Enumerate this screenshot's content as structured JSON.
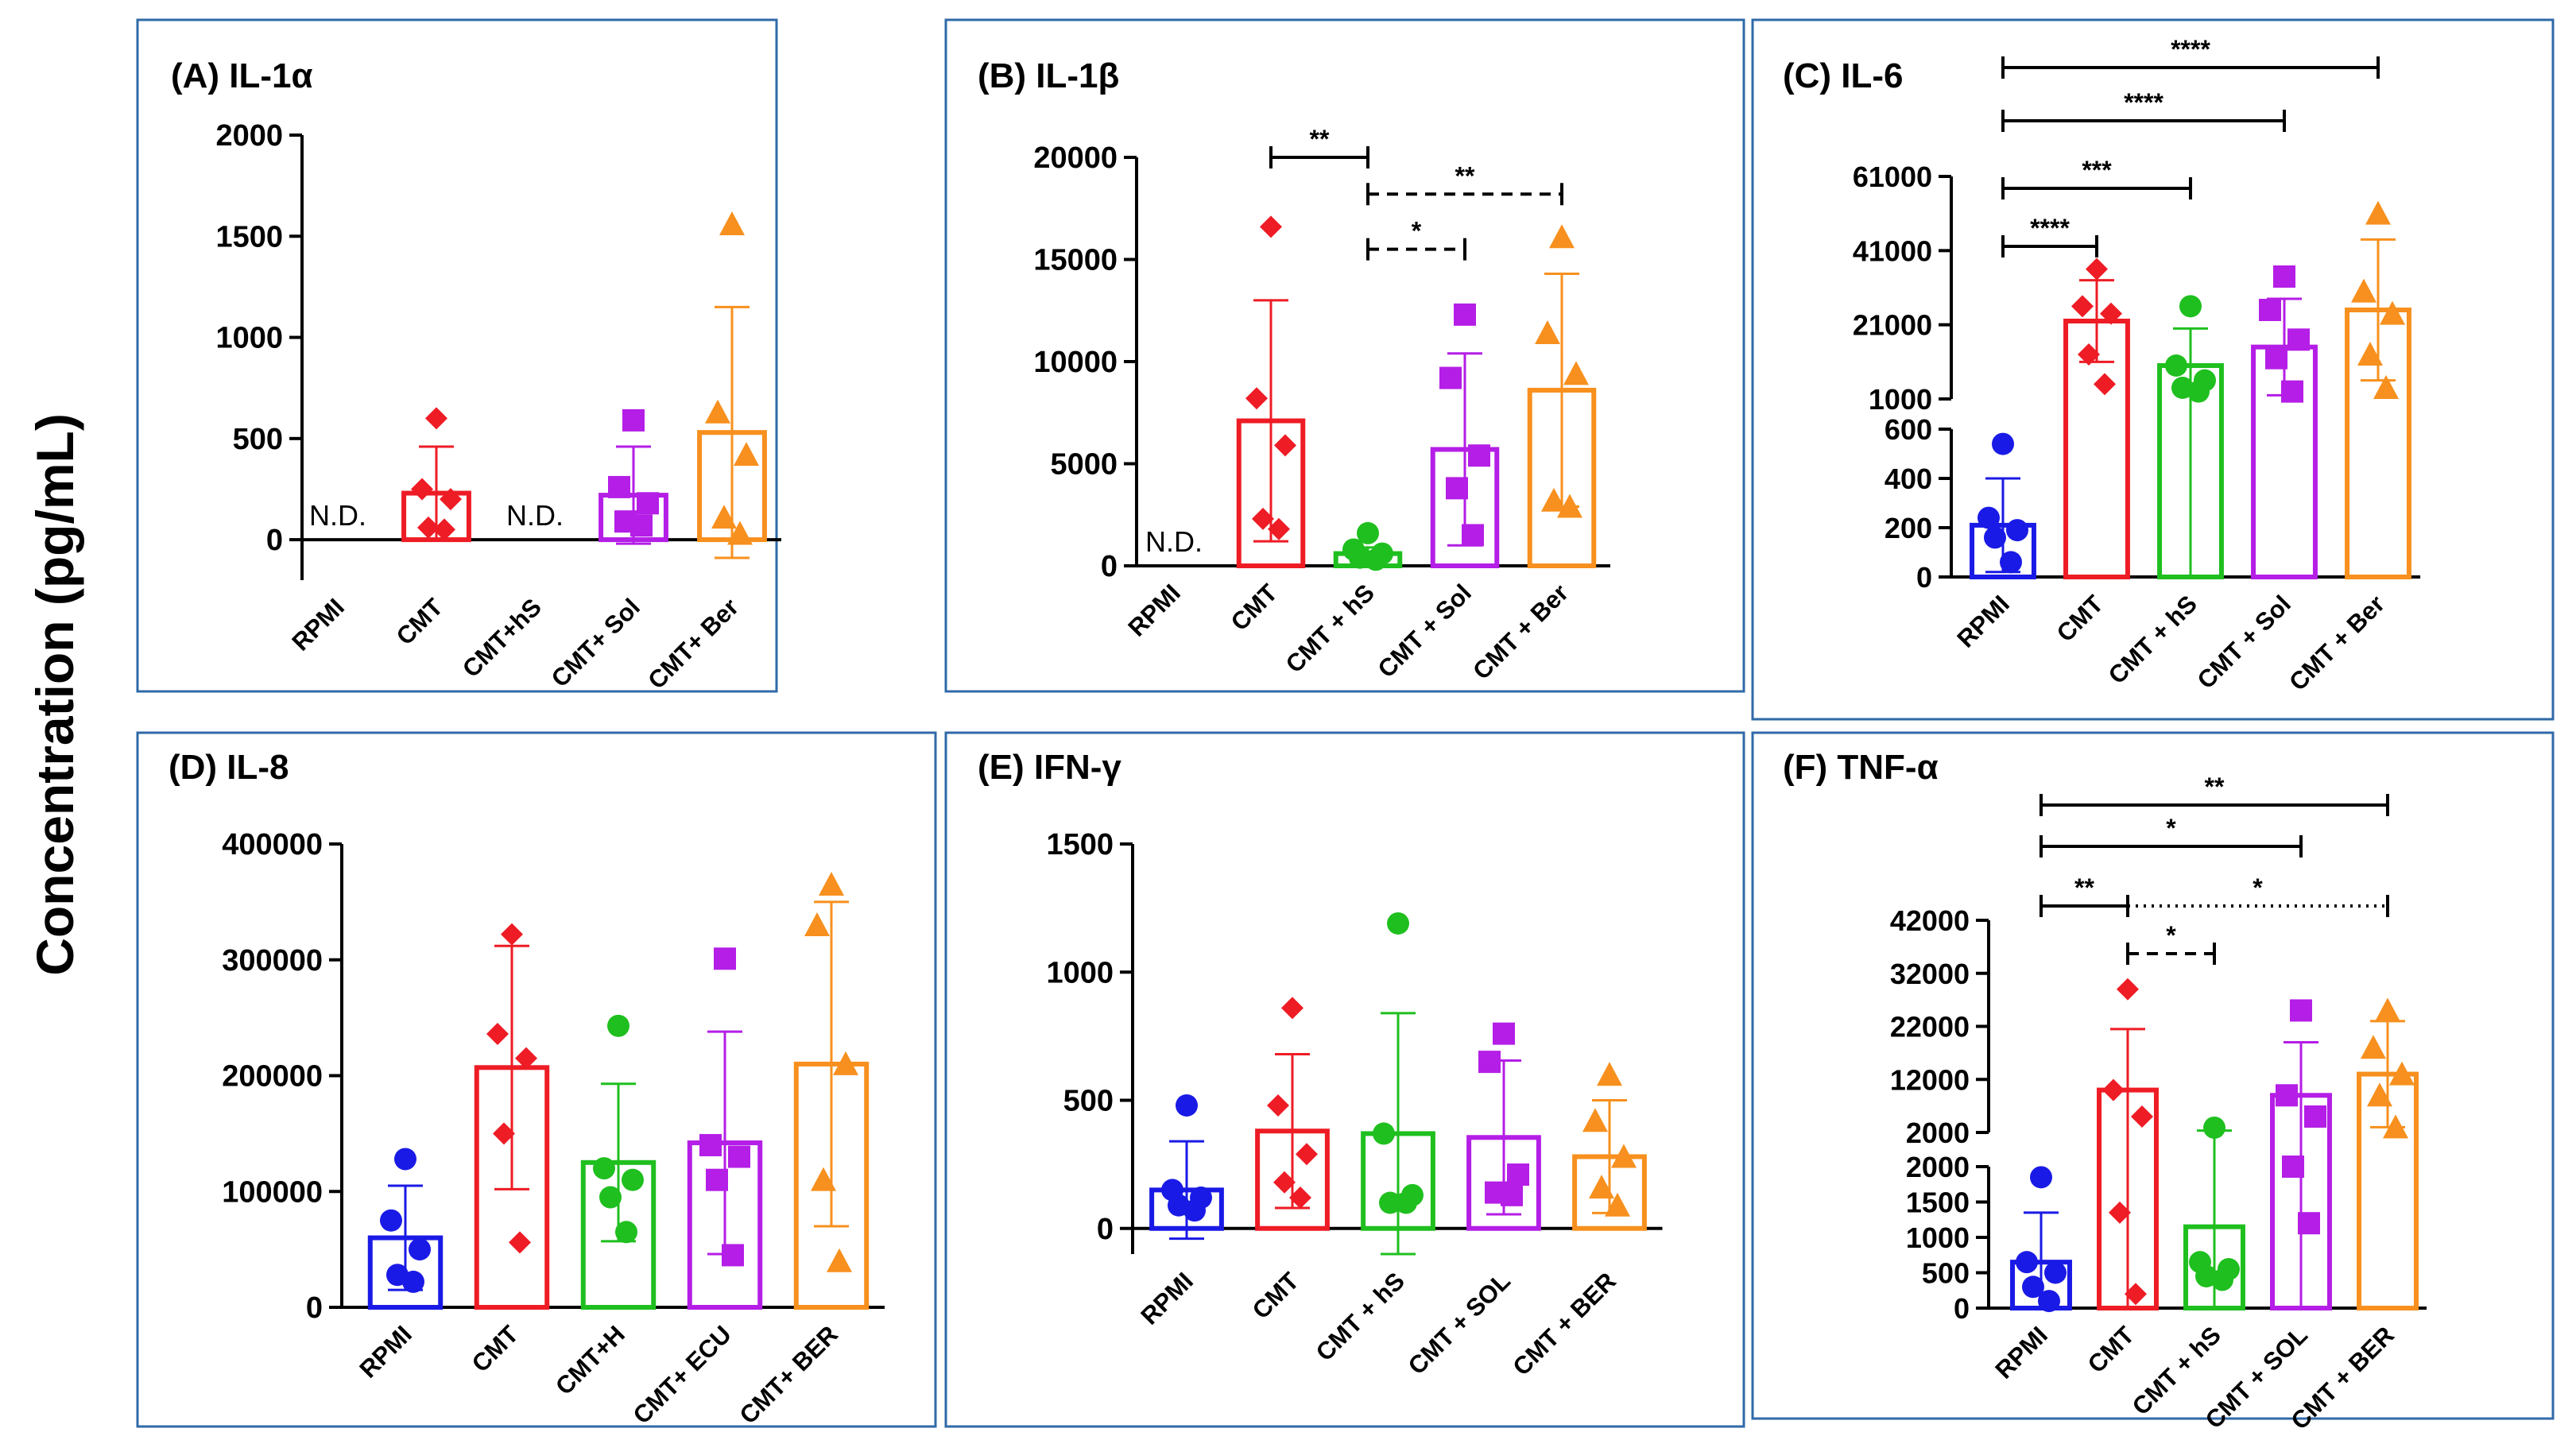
{
  "y_axis_label": "Concentration (pg/mL)",
  "colors": {
    "RPMI": "#1a1ae6",
    "CMT": "#ee1c25",
    "hS": "#1fbf1f",
    "Sol": "#b41ee6",
    "Ber": "#f7901e",
    "frame": "#2f6aa8",
    "axis": "#000000"
  },
  "chart_data": [
    {
      "id": "A",
      "type": "bar",
      "title": "(A) IL-1α",
      "categories": [
        "RPMI",
        "CMT",
        "CMT+hS",
        "CMT+ Sol",
        "CMT+ Ber"
      ],
      "ylim": [
        -200,
        2000
      ],
      "ticks": [
        0,
        500,
        1000,
        1500,
        2000
      ],
      "tick_labels": [
        "0",
        "500",
        "1000",
        "1500",
        "2000"
      ],
      "zero_line": true,
      "values": [
        null,
        230,
        null,
        220,
        530
      ],
      "sd": [
        null,
        230,
        null,
        240,
        620
      ],
      "nd": [
        "N.D.",
        null,
        "N.D.",
        null,
        null
      ],
      "points": [
        [],
        [
          600,
          250,
          200,
          60,
          50
        ],
        [],
        [
          590,
          260,
          180,
          90,
          70
        ],
        [
          1560,
          630,
          420,
          110,
          30
        ]
      ],
      "markers": [
        "circle",
        "diamond",
        "circle",
        "square",
        "triangle"
      ],
      "brackets": []
    },
    {
      "id": "B",
      "type": "bar",
      "title": "(B) IL-1β",
      "categories": [
        "RPMI",
        "CMT",
        "CMT + hS",
        "CMT + Sol",
        "CMT + Ber"
      ],
      "ylim": [
        0,
        20000
      ],
      "ticks": [
        0,
        5000,
        10000,
        15000,
        20000
      ],
      "tick_labels": [
        "0",
        "5000",
        "10000",
        "15000",
        "20000"
      ],
      "values": [
        null,
        7100,
        600,
        5700,
        8600
      ],
      "sd": [
        null,
        5900,
        300,
        4700,
        5700
      ],
      "nd": [
        "N.D.",
        null,
        null,
        null,
        null
      ],
      "points": [
        [],
        [
          16600,
          8200,
          5900,
          2300,
          1800
        ],
        [
          1600,
          800,
          600,
          400,
          300
        ],
        [
          12300,
          9200,
          5400,
          3800,
          1500
        ],
        [
          16100,
          11400,
          9400,
          3200,
          2900
        ]
      ],
      "markers": [
        "circle",
        "diamond",
        "circle",
        "square",
        "triangle"
      ],
      "brackets": [
        {
          "from": 1,
          "to": 2,
          "level": 20000,
          "label": "**",
          "style": "solid"
        },
        {
          "from": 2,
          "to": 3,
          "level": 15500,
          "label": "*",
          "style": "dashed"
        },
        {
          "from": 2,
          "to": 4,
          "level": 18200,
          "label": "**",
          "style": "dashed"
        }
      ]
    },
    {
      "id": "C",
      "type": "bar",
      "title": "(C) IL-6",
      "categories": [
        "RPMI",
        "CMT",
        "CMT + hS",
        "CMT + Sol",
        "CMT + Ber"
      ],
      "broken_axis": true,
      "lower": {
        "range": [
          0,
          600
        ],
        "ticks": [
          0,
          200,
          400,
          600
        ],
        "tick_labels": [
          "0",
          "200",
          "400",
          "600"
        ]
      },
      "upper": {
        "range": [
          1000,
          61000
        ],
        "ticks": [
          1000,
          21000,
          41000,
          61000
        ],
        "tick_labels": [
          "1000",
          "21000",
          "41000",
          "61000"
        ]
      },
      "values": [
        210,
        22000,
        10000,
        15000,
        25000
      ],
      "sd": [
        190,
        11000,
        10000,
        13000,
        19000
      ],
      "points": [
        [
          540,
          240,
          190,
          160,
          60
        ],
        [
          36000,
          26000,
          24000,
          13000,
          5000
        ],
        [
          26000,
          10000,
          6000,
          4000,
          3000
        ],
        [
          34000,
          25000,
          17000,
          12000,
          3000
        ],
        [
          51000,
          30000,
          24000,
          13000,
          4000
        ]
      ],
      "markers": [
        "circle",
        "diamond",
        "circle",
        "square",
        "triangle"
      ],
      "brackets": [
        {
          "from": 0,
          "to": 1,
          "level": "r1",
          "label": "****",
          "style": "solid"
        },
        {
          "from": 0,
          "to": 2,
          "level": "r2",
          "label": "***",
          "style": "solid"
        },
        {
          "from": 0,
          "to": 3,
          "level": "r3",
          "label": "****",
          "style": "solid"
        },
        {
          "from": 0,
          "to": 4,
          "level": "r4",
          "label": "****",
          "style": "solid"
        }
      ]
    },
    {
      "id": "D",
      "type": "bar",
      "title": "(D) IL-8",
      "categories": [
        "RPMI",
        "CMT",
        "CMT+H",
        "CMT+ ECU",
        "CMT+ BER"
      ],
      "ylim": [
        0,
        400000
      ],
      "ticks": [
        0,
        100000,
        200000,
        300000,
        400000
      ],
      "tick_labels": [
        "0",
        "100000",
        "200000",
        "300000",
        "400000"
      ],
      "values": [
        60000,
        207000,
        125000,
        142000,
        210000
      ],
      "sd": [
        45000,
        105000,
        68000,
        96000,
        140000
      ],
      "points": [
        [
          128000,
          75000,
          50000,
          28000,
          22000
        ],
        [
          322000,
          236000,
          215000,
          150000,
          56000
        ],
        [
          243000,
          120000,
          110000,
          95000,
          65000
        ],
        [
          301000,
          140000,
          130000,
          110000,
          45000
        ],
        [
          365000,
          330000,
          210000,
          110000,
          40000
        ]
      ],
      "markers": [
        "circle",
        "diamond",
        "circle",
        "square",
        "triangle"
      ],
      "brackets": []
    },
    {
      "id": "E",
      "type": "bar",
      "title": "(E) IFN-γ",
      "categories": [
        "RPMI",
        "CMT",
        "CMT + hS",
        "CMT + SOL",
        "CMT + BER"
      ],
      "ylim": [
        -100,
        1500
      ],
      "ticks": [
        0,
        500,
        1000,
        1500
      ],
      "tick_labels": [
        "0",
        "500",
        "1000",
        "1500"
      ],
      "zero_line": true,
      "values": [
        150,
        380,
        370,
        355,
        280
      ],
      "sd": [
        190,
        300,
        470,
        300,
        220
      ],
      "points": [
        [
          480,
          150,
          120,
          90,
          70
        ],
        [
          860,
          480,
          290,
          180,
          120
        ],
        [
          1190,
          370,
          130,
          100,
          100
        ],
        [
          760,
          650,
          210,
          140,
          130
        ],
        [
          600,
          420,
          280,
          160,
          90
        ]
      ],
      "markers": [
        "circle",
        "diamond",
        "circle",
        "square",
        "triangle"
      ],
      "brackets": []
    },
    {
      "id": "F",
      "type": "bar",
      "title": "(F) TNF-α",
      "categories": [
        "RPMI",
        "CMT",
        "CMT + hS",
        "CMT + SOL",
        "CMT + BER"
      ],
      "broken_axis": true,
      "lower": {
        "range": [
          0,
          2000
        ],
        "ticks": [
          0,
          500,
          1000,
          1500,
          2000
        ],
        "tick_labels": [
          "0",
          "500",
          "1000",
          "1500",
          "2000"
        ]
      },
      "upper": {
        "range": [
          2000,
          42000
        ],
        "ticks": [
          2000,
          12000,
          22000,
          32000,
          42000
        ],
        "tick_labels": [
          "2000",
          "12000",
          "22000",
          "32000",
          "42000"
        ]
      },
      "values": [
        650,
        10000,
        1150,
        9000,
        13000
      ],
      "sd": [
        700,
        11500,
        1200,
        10000,
        10000
      ],
      "points": [
        [
          1850,
          650,
          500,
          300,
          100
        ],
        [
          29000,
          10000,
          5000,
          1350,
          200
        ],
        [
          2900,
          650,
          550,
          450,
          400
        ],
        [
          25000,
          9000,
          5000,
          2000,
          1200
        ],
        [
          25000,
          18000,
          13000,
          9000,
          3000
        ]
      ],
      "markers": [
        "circle",
        "diamond",
        "circle",
        "square",
        "triangle"
      ],
      "brackets": [
        {
          "from": 0,
          "to": 1,
          "level": "r1",
          "label": "**",
          "style": "solid"
        },
        {
          "from": 1,
          "to": 2,
          "level": "r0",
          "label": "*",
          "style": "dashed"
        },
        {
          "from": 1,
          "to": 4,
          "level": "r1",
          "label": "*",
          "style": "dotted"
        },
        {
          "from": 0,
          "to": 3,
          "level": "r2",
          "label": "*",
          "style": "solid"
        },
        {
          "from": 0,
          "to": 4,
          "level": "r3",
          "label": "**",
          "style": "solid"
        }
      ]
    }
  ]
}
